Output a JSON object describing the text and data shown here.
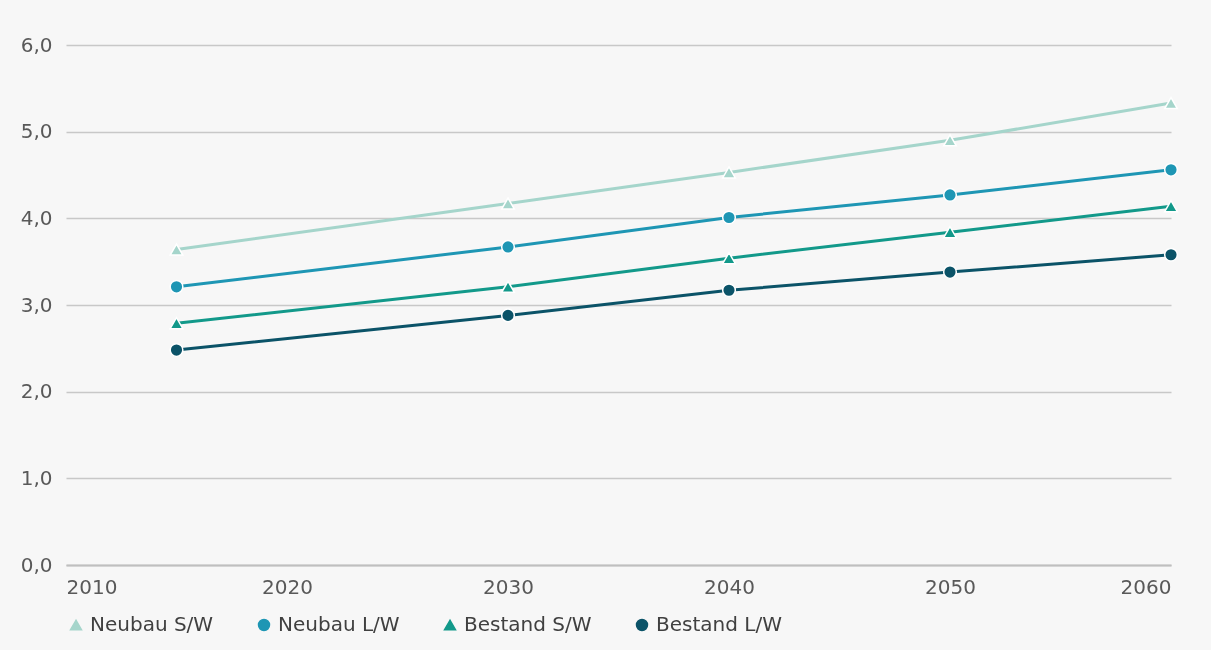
{
  "chart_data": {
    "type": "line",
    "x": [
      2015,
      2030,
      2040,
      2050,
      2060
    ],
    "xlim": [
      2010,
      2060
    ],
    "xticks": [
      2010,
      2020,
      2030,
      2040,
      2050,
      2060
    ],
    "ylim": [
      0,
      6
    ],
    "yticks": [
      {
        "value": 0,
        "label": "0,0"
      },
      {
        "value": 1,
        "label": "1,0"
      },
      {
        "value": 2,
        "label": "2,0"
      },
      {
        "value": 3,
        "label": "3,0"
      },
      {
        "value": 4,
        "label": "4,0"
      },
      {
        "value": 5,
        "label": "5,0"
      },
      {
        "value": 6,
        "label": "6,0"
      }
    ],
    "grid": "y",
    "legend": "bottom",
    "series": [
      {
        "name": "Neubau S/W",
        "color": "#a5d5cb",
        "marker": "triangle",
        "values": [
          3.64,
          4.17,
          4.53,
          4.9,
          5.33
        ]
      },
      {
        "name": "Neubau L/W",
        "color": "#1e96b4",
        "marker": "circle",
        "values": [
          3.21,
          3.67,
          4.01,
          4.27,
          4.56
        ]
      },
      {
        "name": "Bestand S/W",
        "color": "#12998a",
        "marker": "triangle",
        "values": [
          2.79,
          3.21,
          3.54,
          3.84,
          4.14
        ]
      },
      {
        "name": "Bestand L/W",
        "color": "#0b5368",
        "marker": "circle",
        "values": [
          2.48,
          2.88,
          3.17,
          3.38,
          3.58
        ]
      }
    ]
  }
}
